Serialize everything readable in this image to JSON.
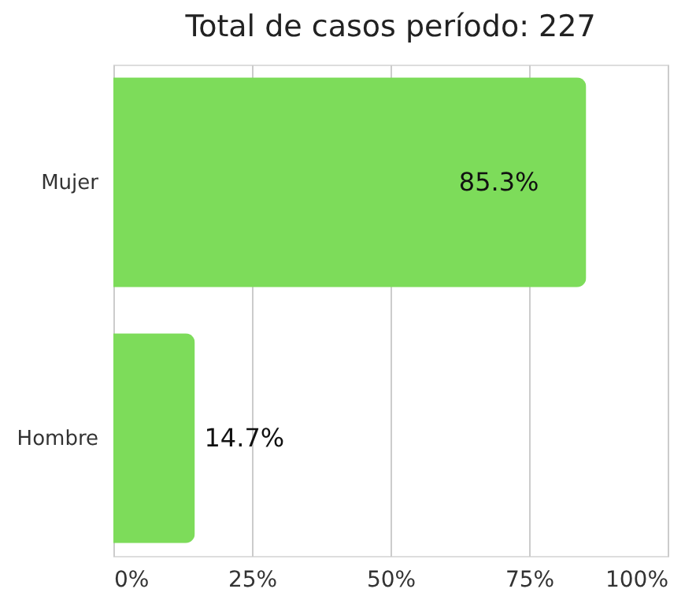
{
  "chart_data": {
    "type": "bar",
    "orientation": "horizontal",
    "title": "Total de casos período: 227",
    "categories": [
      "Mujer",
      "Hombre"
    ],
    "values": [
      85.3,
      14.7
    ],
    "value_labels": [
      "85.3%",
      "14.7%"
    ],
    "color": "#7ddc5a",
    "xlim": [
      0,
      100
    ],
    "xticks": [
      {
        "value": 0,
        "label": "0%"
      },
      {
        "value": 25,
        "label": "25%"
      },
      {
        "value": 50,
        "label": "50%"
      },
      {
        "value": 75,
        "label": "75%"
      },
      {
        "value": 100,
        "label": "100%"
      }
    ],
    "grid": "x"
  }
}
